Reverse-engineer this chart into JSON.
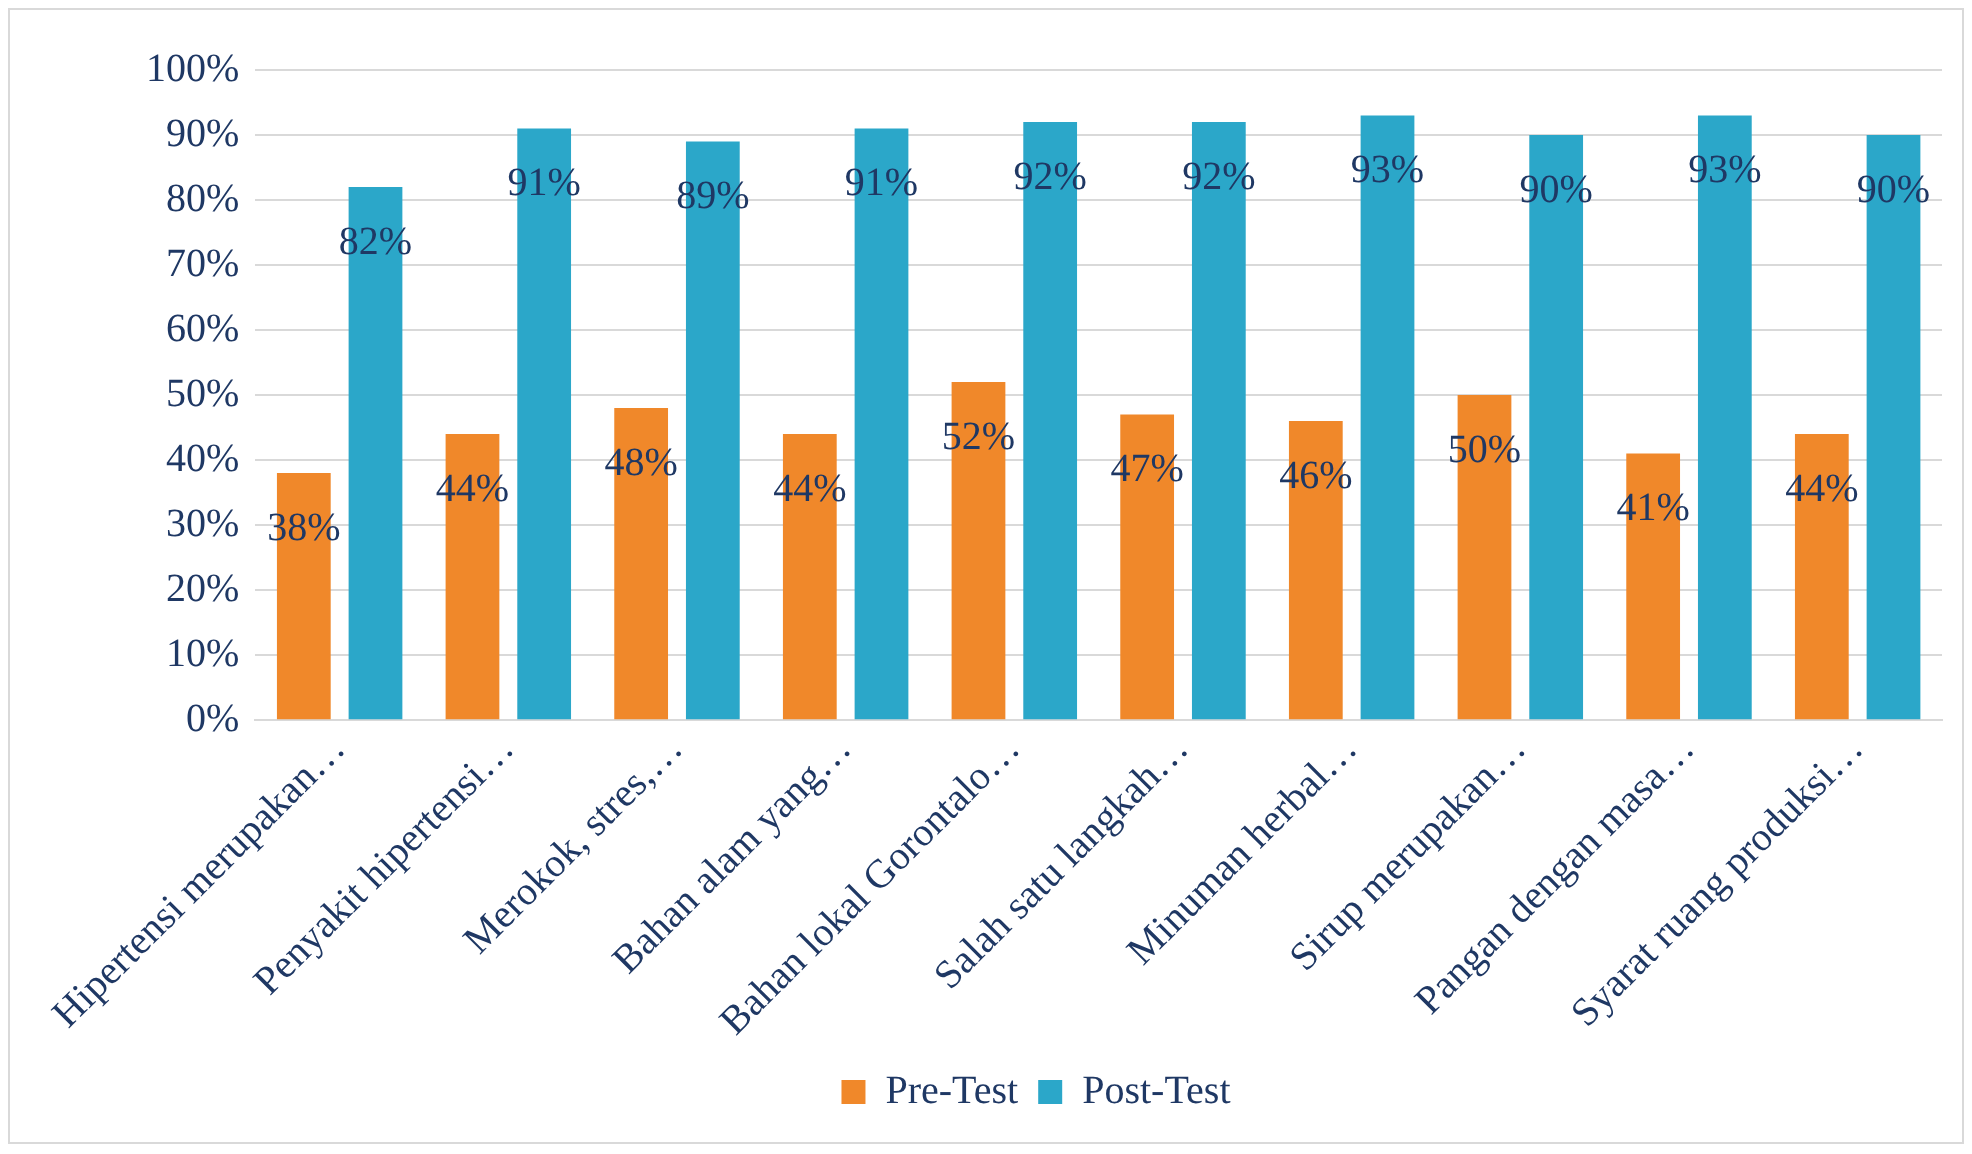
{
  "chart_data": {
    "type": "bar",
    "categories": [
      "Hipertensi merupakan…",
      "Penyakit hipertensi…",
      "Merokok, stres,…",
      "Bahan alam yang…",
      "Bahan lokal Gorontalo…",
      "Salah satu langkah…",
      "Minuman herbal…",
      "Sirup merupakan…",
      "Pangan dengan masa…",
      "Syarat ruang produksi…"
    ],
    "series": [
      {
        "name": "Pre-Test",
        "color": "#f0882a",
        "values": [
          38,
          44,
          48,
          44,
          52,
          47,
          46,
          50,
          41,
          44
        ],
        "value_labels": [
          "38%",
          "44%",
          "48%",
          "44%",
          "52%",
          "47%",
          "46%",
          "50%",
          "41%",
          "44%"
        ]
      },
      {
        "name": "Post-Test",
        "color": "#2ba7c9",
        "values": [
          82,
          91,
          89,
          91,
          92,
          92,
          93,
          90,
          93,
          90
        ],
        "value_labels": [
          "82%",
          "91%",
          "89%",
          "91%",
          "92%",
          "92%",
          "93%",
          "90%",
          "93%",
          "90%"
        ]
      }
    ],
    "ylim": [
      0,
      100
    ],
    "yticks": [
      {
        "value": 0,
        "label": "0%"
      },
      {
        "value": 10,
        "label": "10%"
      },
      {
        "value": 20,
        "label": "20%"
      },
      {
        "value": 30,
        "label": "30%"
      },
      {
        "value": 40,
        "label": "40%"
      },
      {
        "value": 50,
        "label": "50%"
      },
      {
        "value": 60,
        "label": "60%"
      },
      {
        "value": 70,
        "label": "70%"
      },
      {
        "value": 80,
        "label": "80%"
      },
      {
        "value": 90,
        "label": "90%"
      },
      {
        "value": 100,
        "label": "100%"
      }
    ],
    "grid": "y",
    "legend": "bottom"
  }
}
